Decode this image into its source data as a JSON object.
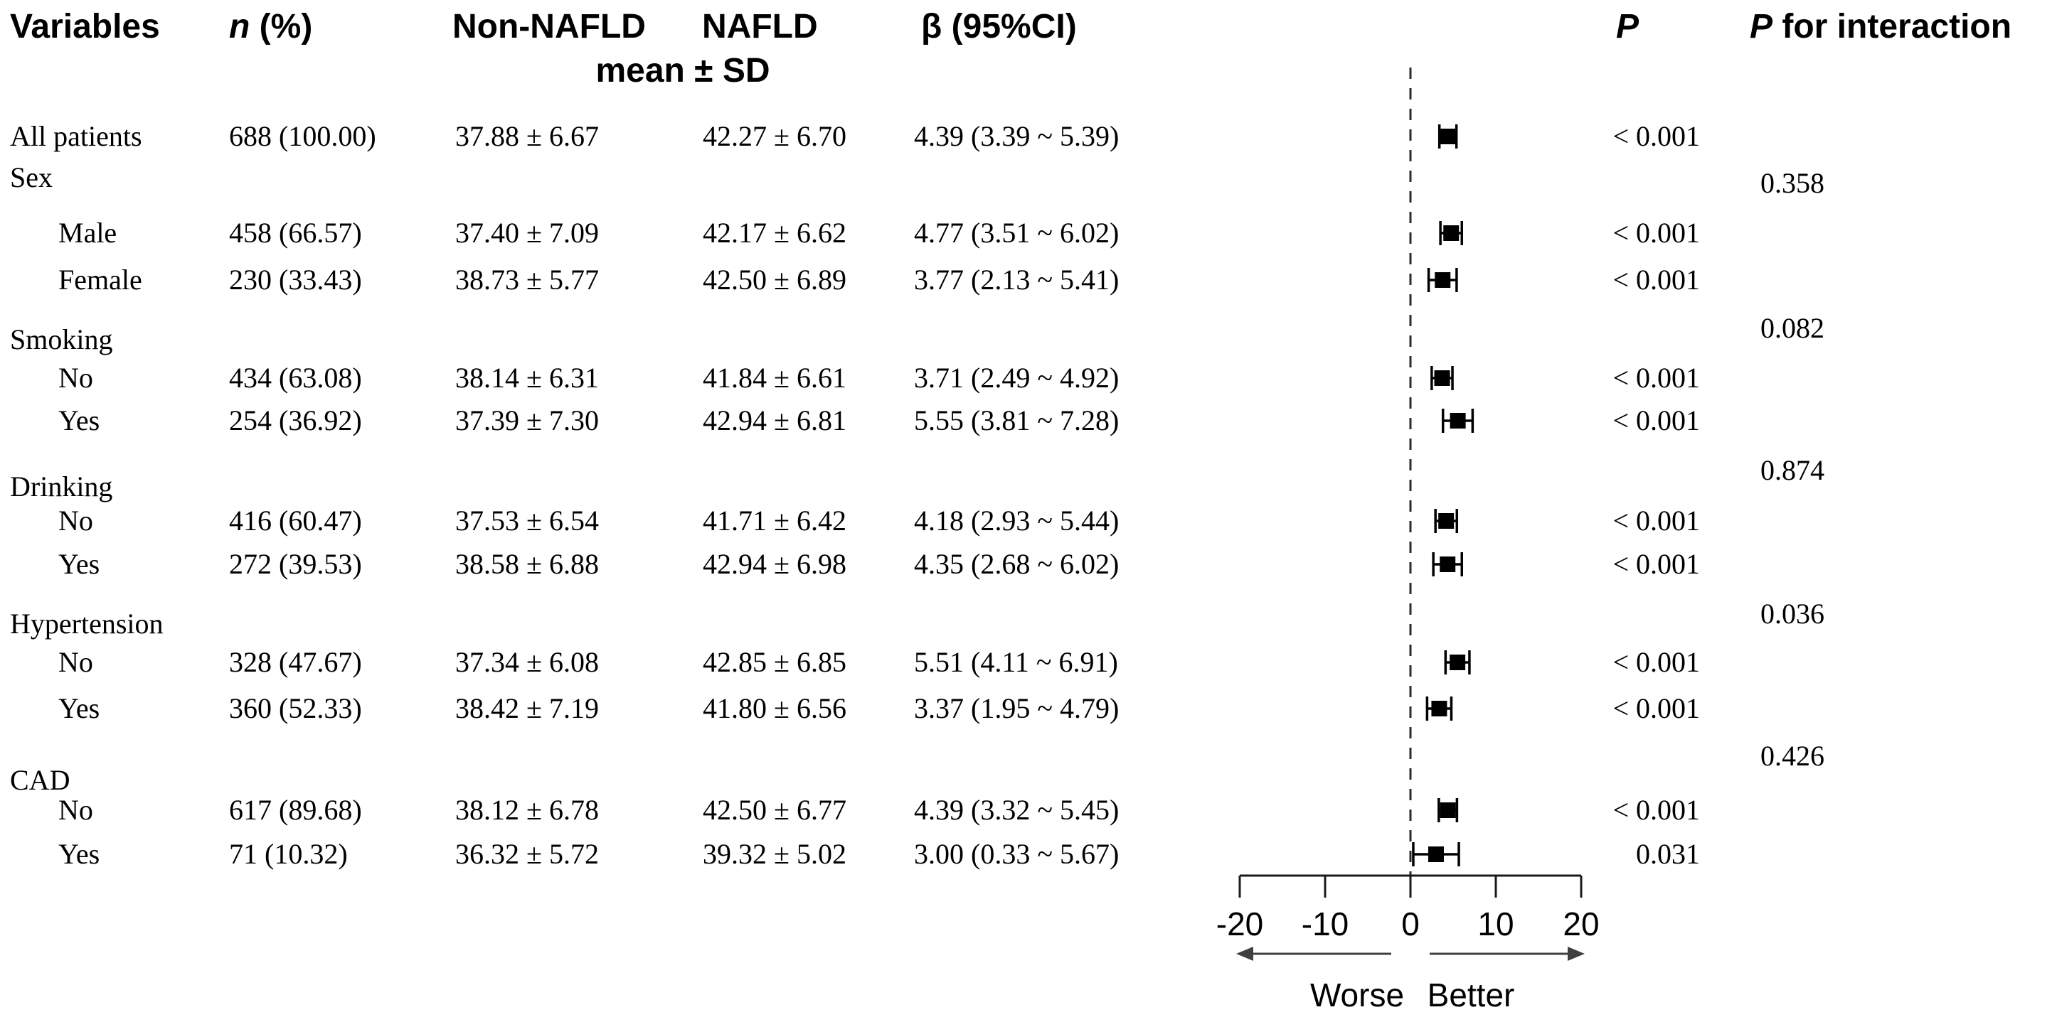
{
  "figure": {
    "background": "#ffffff",
    "text_color": "#000000",
    "accent_color": "#000000"
  },
  "table": {
    "headers": {
      "variables": "Variables",
      "n_italic": "n",
      "n_rest": " (%)",
      "non_nafld": "Non-NAFLD",
      "nafld": "NAFLD",
      "mean_sd": "mean ± SD",
      "beta_ci": "β (95%CI)",
      "p": "P",
      "p_int_italic": "P",
      "p_int_rest": " for interaction"
    }
  },
  "chart_data": {
    "type": "forest",
    "title": "",
    "xlabel": "",
    "xlim": [
      -20,
      20
    ],
    "axis_ticks": [
      -20,
      -10,
      0,
      10,
      20
    ],
    "zero_line": 0,
    "grid": false,
    "direction_labels": {
      "left": "Worse",
      "right": "Better"
    },
    "rows": [
      {
        "label": "All patients",
        "level": "all",
        "n_pct": "688 (100.00)",
        "non_nafld": "37.88 ± 6.67",
        "nafld": "42.27 ± 6.70",
        "beta_ci": "4.39 (3.39 ~ 5.39)",
        "beta": 4.39,
        "ci_low": 3.39,
        "ci_high": 5.39,
        "p": "< 0.001",
        "p_interaction": ""
      },
      {
        "label": "Sex",
        "level": "group",
        "n_pct": "",
        "non_nafld": "",
        "nafld": "",
        "beta_ci": "",
        "beta": null,
        "ci_low": null,
        "ci_high": null,
        "p": "",
        "p_interaction": "0.358"
      },
      {
        "label": "Male",
        "level": "item",
        "n_pct": "458 (66.57)",
        "non_nafld": "37.40 ± 7.09",
        "nafld": "42.17 ± 6.62",
        "beta_ci": "4.77 (3.51 ~ 6.02)",
        "beta": 4.77,
        "ci_low": 3.51,
        "ci_high": 6.02,
        "p": "< 0.001",
        "p_interaction": ""
      },
      {
        "label": "Female",
        "level": "item",
        "n_pct": "230 (33.43)",
        "non_nafld": "38.73 ± 5.77",
        "nafld": "42.50 ± 6.89",
        "beta_ci": "3.77 (2.13 ~ 5.41)",
        "beta": 3.77,
        "ci_low": 2.13,
        "ci_high": 5.41,
        "p": "< 0.001",
        "p_interaction": ""
      },
      {
        "label": "Smoking",
        "level": "group",
        "n_pct": "",
        "non_nafld": "",
        "nafld": "",
        "beta_ci": "",
        "beta": null,
        "ci_low": null,
        "ci_high": null,
        "p": "",
        "p_interaction": "0.082"
      },
      {
        "label": "No",
        "level": "item",
        "n_pct": "434 (63.08)",
        "non_nafld": "38.14 ± 6.31",
        "nafld": "41.84 ± 6.61",
        "beta_ci": "3.71 (2.49 ~ 4.92)",
        "beta": 3.71,
        "ci_low": 2.49,
        "ci_high": 4.92,
        "p": "< 0.001",
        "p_interaction": ""
      },
      {
        "label": "Yes",
        "level": "item",
        "n_pct": "254 (36.92)",
        "non_nafld": "37.39 ± 7.30",
        "nafld": "42.94 ± 6.81",
        "beta_ci": "5.55 (3.81 ~ 7.28)",
        "beta": 5.55,
        "ci_low": 3.81,
        "ci_high": 7.28,
        "p": "< 0.001",
        "p_interaction": ""
      },
      {
        "label": "Drinking",
        "level": "group",
        "n_pct": "",
        "non_nafld": "",
        "nafld": "",
        "beta_ci": "",
        "beta": null,
        "ci_low": null,
        "ci_high": null,
        "p": "",
        "p_interaction": "0.874"
      },
      {
        "label": "No",
        "level": "item",
        "n_pct": "416 (60.47)",
        "non_nafld": "37.53 ± 6.54",
        "nafld": "41.71 ± 6.42",
        "beta_ci": "4.18 (2.93 ~ 5.44)",
        "beta": 4.18,
        "ci_low": 2.93,
        "ci_high": 5.44,
        "p": "< 0.001",
        "p_interaction": ""
      },
      {
        "label": "Yes",
        "level": "item",
        "n_pct": "272 (39.53)",
        "non_nafld": "38.58 ± 6.88",
        "nafld": "42.94 ± 6.98",
        "beta_ci": "4.35 (2.68 ~ 6.02)",
        "beta": 4.35,
        "ci_low": 2.68,
        "ci_high": 6.02,
        "p": "< 0.001",
        "p_interaction": ""
      },
      {
        "label": "Hypertension",
        "level": "group",
        "n_pct": "",
        "non_nafld": "",
        "nafld": "",
        "beta_ci": "",
        "beta": null,
        "ci_low": null,
        "ci_high": null,
        "p": "",
        "p_interaction": "0.036"
      },
      {
        "label": "No",
        "level": "item",
        "n_pct": "328 (47.67)",
        "non_nafld": "37.34 ± 6.08",
        "nafld": "42.85 ± 6.85",
        "beta_ci": "5.51 (4.11 ~ 6.91)",
        "beta": 5.51,
        "ci_low": 4.11,
        "ci_high": 6.91,
        "p": "< 0.001",
        "p_interaction": ""
      },
      {
        "label": "Yes",
        "level": "item",
        "n_pct": "360 (52.33)",
        "non_nafld": "38.42 ± 7.19",
        "nafld": "41.80 ± 6.56",
        "beta_ci": "3.37 (1.95 ~ 4.79)",
        "beta": 3.37,
        "ci_low": 1.95,
        "ci_high": 4.79,
        "p": "< 0.001",
        "p_interaction": ""
      },
      {
        "label": "CAD",
        "level": "group",
        "n_pct": "",
        "non_nafld": "",
        "nafld": "",
        "beta_ci": "",
        "beta": null,
        "ci_low": null,
        "ci_high": null,
        "p": "",
        "p_interaction": "0.426"
      },
      {
        "label": "No",
        "level": "item",
        "n_pct": "617 (89.68)",
        "non_nafld": "38.12 ± 6.78",
        "nafld": "42.50 ± 6.77",
        "beta_ci": "4.39 (3.32 ~ 5.45)",
        "beta": 4.39,
        "ci_low": 3.32,
        "ci_high": 5.45,
        "p": "< 0.001",
        "p_interaction": ""
      },
      {
        "label": "Yes",
        "level": "item",
        "n_pct": "71 (10.32)",
        "non_nafld": "36.32 ± 5.72",
        "nafld": "39.32 ± 5.02",
        "beta_ci": "3.00 (0.33 ~ 5.67)",
        "beta": 3.0,
        "ci_low": 0.33,
        "ci_high": 5.67,
        "p": "0.031",
        "p_interaction": ""
      }
    ]
  }
}
